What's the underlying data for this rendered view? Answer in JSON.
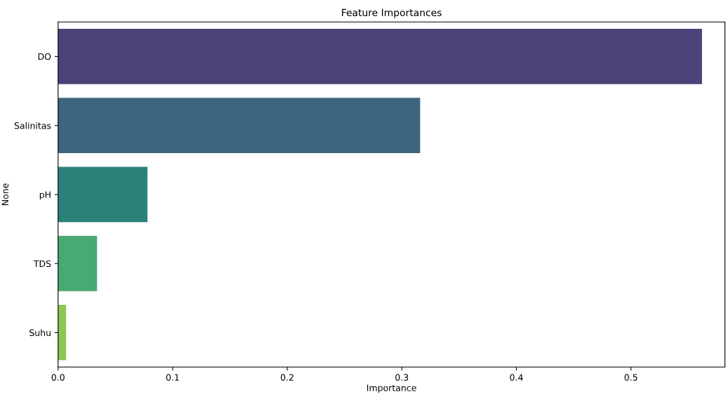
{
  "chart_data": {
    "type": "bar",
    "orientation": "horizontal",
    "title": "Feature Importances",
    "xlabel": "Importance",
    "ylabel": "None",
    "categories": [
      "DO",
      "Salinitas",
      "pH",
      "TDS",
      "Suhu"
    ],
    "values": [
      0.562,
      0.316,
      0.078,
      0.034,
      0.007
    ],
    "colors": [
      "#4b4279",
      "#3e657f",
      "#2c817b",
      "#48a974",
      "#8cc752"
    ],
    "xlim": [
      0,
      0.582
    ],
    "xticks": [
      {
        "value": 0,
        "label": "0.0"
      },
      0.1,
      0.2,
      0.3,
      0.4,
      0.5
    ],
    "grid": false
  }
}
